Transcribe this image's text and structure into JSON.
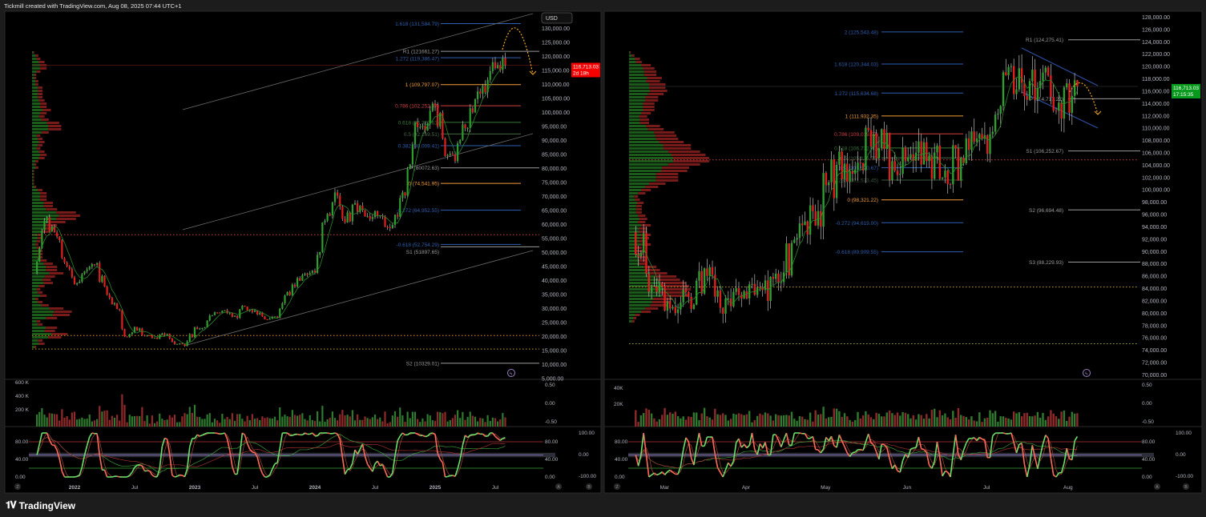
{
  "header": {
    "caption": "Tickmill created with TradingView.com, Aug 08, 2025 07:44 UTC+1"
  },
  "footer": {
    "brand": "TradingView",
    "logo_icon": "tradingview-logo-icon"
  },
  "colors": {
    "up": "#2e9e2e",
    "down": "#e01e1e",
    "fib_blue": "#2f5fb0",
    "fib_orange": "#f29d38",
    "fib_red": "#d04040",
    "fib_green": "#3a7a3a",
    "pivot": "#9a9a9a",
    "price_red": "#f70000",
    "price_green": "#089a1c",
    "projection": "#f5a623",
    "osc_up": "#6be06b",
    "osc_down": "#ff6a5a"
  },
  "left": {
    "currency": "USD",
    "price_label": {
      "price": "116,713.03",
      "countdown": "2d 18h"
    },
    "price_ticks": [
      "130,000.00",
      "125,000.00",
      "120,000.00",
      "115,000.00",
      "110,000.00",
      "105,000.00",
      "100,000.00",
      "95,000.00",
      "90,000.00",
      "85,000.00",
      "80,000.00",
      "75,000.00",
      "70,000.00",
      "65,000.00",
      "60,000.00",
      "55,000.00",
      "50,000.00",
      "45,000.00",
      "40,000.00",
      "35,000.00",
      "30,000.00",
      "25,000.00",
      "20,000.00",
      "15,000.00",
      "10,000.00",
      "5,000.00"
    ],
    "volume_ticks": [
      "600 K",
      "400 K",
      "200 K"
    ],
    "aux_ticks": [
      "0.50",
      "0.00",
      "-0.50"
    ],
    "osc_ticks": [
      "80.00",
      "40.00",
      "0.00"
    ],
    "osc_ticks_right": [
      "80.00",
      "40.00",
      "0.00"
    ],
    "osc_ticks_far": [
      "100.00",
      "0.00",
      "-100.00"
    ],
    "time_labels": [
      {
        "label": "2022",
        "date": 4
      },
      {
        "label": "Jul",
        "date": 10
      },
      {
        "label": "2023",
        "date": 16
      },
      {
        "label": "Jul",
        "date": 22
      },
      {
        "label": "2024",
        "date": 28
      },
      {
        "label": "Jul",
        "date": 34
      },
      {
        "label": "2025",
        "date": 40
      },
      {
        "label": "Jul",
        "date": 46
      }
    ],
    "scale_buttons": [
      "Z",
      "A",
      "B"
    ],
    "levels": [
      {
        "label": "1.618 (131,584.79)",
        "price": 131584.79,
        "kind": "fib",
        "color": "#2f5fb0"
      },
      {
        "label": "R1 (121661.27)",
        "price": 121661.27,
        "kind": "pivot",
        "color": "#9a9a9a"
      },
      {
        "label": "1.272 (119,386.47)",
        "price": 119386.47,
        "kind": "fib",
        "color": "#2f5fb0"
      },
      {
        "label": "1 (109,797.07)",
        "price": 109797.07,
        "kind": "fib",
        "color": "#f29d38"
      },
      {
        "label": "0.786 (102,252.47)",
        "price": 102252.47,
        "kind": "fib",
        "color": "#d04040"
      },
      {
        "label": "0.618 (96,329.61)",
        "price": 96329.61,
        "kind": "fib",
        "color": "#3a7a3a"
      },
      {
        "label": "0.5 (92,169.51)",
        "price": 92169.51,
        "kind": "fib",
        "color": "#4a6a4a"
      },
      {
        "label": "0.382 (88,009.41)",
        "price": 88009.41,
        "kind": "fib",
        "color": "#2f5fb0"
      },
      {
        "label": "P (80072.63)",
        "price": 80072.63,
        "kind": "pivot",
        "color": "#9a9a9a"
      },
      {
        "label": "0 (74,541.95)",
        "price": 74541.95,
        "kind": "fib",
        "color": "#f29d38"
      },
      {
        "label": "-0.272 (64,952.55)",
        "price": 64952.55,
        "kind": "fib",
        "color": "#2f5fb0"
      },
      {
        "label": "-0.618 (52,754.29)",
        "price": 52754.29,
        "kind": "fib",
        "color": "#2f5fb0"
      },
      {
        "label": "S1 (51897.65)",
        "price": 51897.65,
        "kind": "pivot",
        "color": "#9a9a9a"
      },
      {
        "label": "S2 (10329.01)",
        "price": 10329.01,
        "kind": "pivot",
        "color": "#9a9a9a"
      }
    ],
    "dotted_levels": [
      {
        "price": 56200,
        "color": "#d04040"
      },
      {
        "price": 20200,
        "color": "#e08a30"
      },
      {
        "price": 15400,
        "color": "#c8a030"
      }
    ]
  },
  "right": {
    "price_label": {
      "price": "116,713.03",
      "countdown": "17:15:35"
    },
    "price_ticks": [
      "128,000.00",
      "126,000.00",
      "124,000.00",
      "122,000.00",
      "120,000.00",
      "118,000.00",
      "116,000.00",
      "114,000.00",
      "112,000.00",
      "110,000.00",
      "108,000.00",
      "106,000.00",
      "104,000.00",
      "102,000.00",
      "100,000.00",
      "98,000.00",
      "96,000.00",
      "94,000.00",
      "92,000.00",
      "90,000.00",
      "88,000.00",
      "86,000.00",
      "84,000.00",
      "82,000.00",
      "80,000.00",
      "78,000.00",
      "76,000.00",
      "74,000.00",
      "72,000.00",
      "70,000.00"
    ],
    "volume_ticks": [
      "40K",
      "20K"
    ],
    "aux_ticks": [
      "0.50",
      "0.00",
      "-0.50"
    ],
    "osc_ticks": [
      "80.00",
      "40.00",
      "0.00"
    ],
    "osc_ticks_right": [
      "80.00",
      "40.00",
      "0.00"
    ],
    "osc_ticks_far": [
      "100.00",
      "0.00",
      "-100.00"
    ],
    "time_labels": [
      {
        "label": "Mar",
        "date": 1.7
      },
      {
        "label": "Apr",
        "date": 6.1
      },
      {
        "label": "May",
        "date": 10.4
      },
      {
        "label": "Jun",
        "date": 14.8
      },
      {
        "label": "Jul",
        "date": 19.1
      },
      {
        "label": "Aug",
        "date": 23.5
      }
    ],
    "scale_buttons": [
      "Z",
      "A",
      "B"
    ],
    "levels": [
      {
        "label": "2 (125,543.48)",
        "price": 125543.48,
        "kind": "fib",
        "color": "#2f5fb0"
      },
      {
        "label": "1.618 (120,344.03)",
        "price": 120344.03,
        "kind": "fib",
        "color": "#2f5fb0"
      },
      {
        "label": "1.272 (115,634.68)",
        "price": 115634.68,
        "kind": "fib",
        "color": "#2f5fb0"
      },
      {
        "label": "1 (111,932.35)",
        "price": 111932.35,
        "kind": "fib",
        "color": "#f29d38"
      },
      {
        "label": "0.786 (109,019.57)",
        "price": 109019.57,
        "kind": "fib",
        "color": "#d04040"
      },
      {
        "label": "0.618 (106,732.90)",
        "price": 106732.9,
        "kind": "fib",
        "color": "#3a7a3a"
      },
      {
        "label": "0.5 (105,126.79)",
        "price": 105126.79,
        "kind": "fib",
        "color": "#4a6a4a"
      },
      {
        "label": "0.382 (103,520.67)",
        "price": 103520.67,
        "kind": "fib",
        "color": "#2f5fb0"
      },
      {
        "label": "0.236 (101,533.45)",
        "price": 101533.45,
        "kind": "fib",
        "color": "#3a5a3a"
      },
      {
        "label": "0 (98,321.22)",
        "price": 98321.22,
        "kind": "fib",
        "color": "#f29d38"
      },
      {
        "label": "-0.272 (94,619.00)",
        "price": 94619.0,
        "kind": "fib",
        "color": "#2f5fb0"
      },
      {
        "label": "-0.618 (89,909.55)",
        "price": 89909.55,
        "kind": "fib",
        "color": "#2f5fb0"
      },
      {
        "label": "R1 (124,275.41)",
        "price": 124275.41,
        "kind": "pivot",
        "color": "#9a9a9a"
      },
      {
        "label": "P (114,717.22)",
        "price": 114717.22,
        "kind": "pivot",
        "color": "#9a9a9a"
      },
      {
        "label": "S1 (106,252.67)",
        "price": 106252.67,
        "kind": "pivot",
        "color": "#9a9a9a"
      },
      {
        "label": "S2 (96,694.48)",
        "price": 96694.48,
        "kind": "pivot",
        "color": "#9a9a9a"
      },
      {
        "label": "S3 (88,229.93)",
        "price": 88229.93,
        "kind": "pivot",
        "color": "#9a9a9a"
      }
    ],
    "dotted_levels": [
      {
        "price": 104800,
        "color": "#d04040"
      },
      {
        "price": 84200,
        "color": "#c8a030"
      },
      {
        "price": 75000,
        "color": "#a0a030"
      }
    ]
  },
  "chart_data": [
    {
      "type": "candlestick",
      "x_unit": "month index from Sep 2021",
      "x": [
        0,
        1,
        2,
        3,
        4,
        5,
        6,
        7,
        8,
        9,
        10,
        11,
        12,
        13,
        14,
        15,
        16,
        17,
        18,
        19,
        20,
        21,
        22,
        23,
        24,
        25,
        26,
        27,
        28,
        29,
        30,
        31,
        32,
        33,
        34,
        35,
        36,
        37,
        38,
        39,
        40,
        41,
        42,
        43,
        44,
        45,
        46,
        47
      ],
      "close": [
        43800,
        61300,
        57000,
        46300,
        38500,
        43200,
        45500,
        37700,
        31800,
        19900,
        23300,
        20000,
        19400,
        20500,
        17100,
        16500,
        23100,
        23100,
        28500,
        29200,
        27200,
        30500,
        29200,
        26000,
        27000,
        34500,
        37700,
        42300,
        42600,
        61200,
        71300,
        60600,
        67500,
        62700,
        64600,
        59000,
        63300,
        70200,
        96400,
        93400,
        102400,
        84300,
        82500,
        94200,
        104600,
        107100,
        115700,
        116713
      ],
      "ylim": [
        5000,
        133000
      ],
      "last_price": 116713.03
    },
    {
      "type": "candlestick",
      "x_unit": "week index from Feb 17 2025",
      "x": [
        0,
        1,
        2,
        3,
        4,
        5,
        6,
        7,
        8,
        9,
        10,
        11,
        12,
        13,
        14,
        15,
        16,
        17,
        18,
        19,
        20,
        21,
        22,
        23,
        24
      ],
      "close": [
        96000,
        84300,
        80700,
        82600,
        86000,
        82300,
        83500,
        83700,
        85000,
        94500,
        96500,
        104000,
        103200,
        109000,
        104600,
        105700,
        105500,
        100900,
        108300,
        108800,
        119000,
        117300,
        117600,
        114100,
        116713
      ],
      "ylim": [
        70000,
        129000
      ],
      "last_price": 116713.03
    }
  ]
}
